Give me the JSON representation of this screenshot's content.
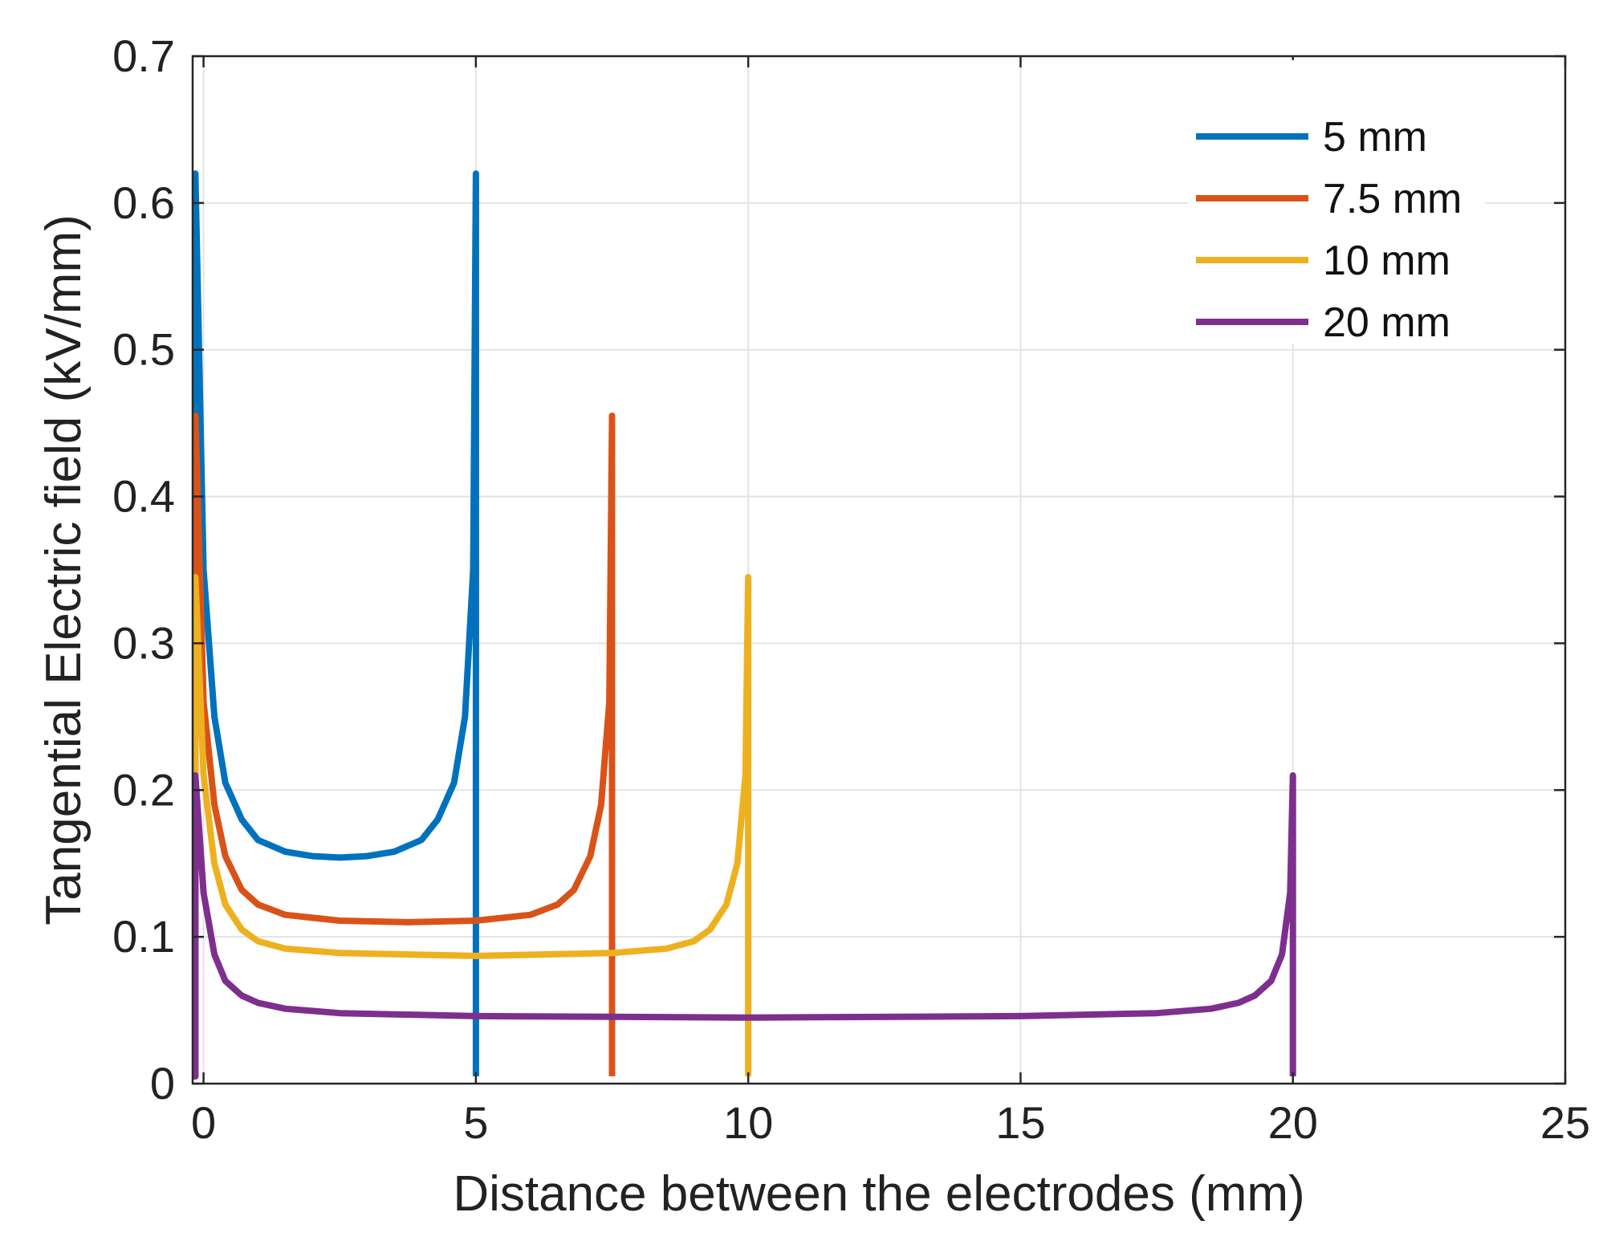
{
  "chart_data": {
    "type": "line",
    "title": "",
    "xlabel": "Distance between the electrodes (mm)",
    "ylabel": "Tangential Electric field (kV/mm)",
    "xlim": [
      -0.2,
      25
    ],
    "ylim": [
      0,
      0.7
    ],
    "xticks": [
      0,
      5,
      10,
      15,
      20,
      25
    ],
    "yticks": [
      0,
      0.1,
      0.2,
      0.3,
      0.4,
      0.5,
      0.6,
      0.7
    ],
    "xtick_labels": [
      "0",
      "5",
      "10",
      "15",
      "20",
      "25"
    ],
    "ytick_labels": [
      "0",
      "0.1",
      "0.2",
      "0.3",
      "0.4",
      "0.5",
      "0.6",
      "0.7"
    ],
    "grid": true,
    "legend_position": "top-right",
    "series": [
      {
        "name": "5 mm",
        "color": "#0072BD",
        "x": [
          -0.2,
          -0.15,
          -0.15,
          0.0,
          0.2,
          0.4,
          0.7,
          1.0,
          1.5,
          2.0,
          2.5,
          3.0,
          3.5,
          4.0,
          4.3,
          4.6,
          4.8,
          4.95,
          5.0,
          5.0
        ],
        "values": [
          0.005,
          0.005,
          0.62,
          0.35,
          0.25,
          0.205,
          0.18,
          0.166,
          0.158,
          0.155,
          0.154,
          0.155,
          0.158,
          0.166,
          0.18,
          0.205,
          0.25,
          0.35,
          0.62,
          0.005
        ]
      },
      {
        "name": "7.5 mm",
        "color": "#D95319",
        "x": [
          -0.2,
          -0.15,
          -0.15,
          0.0,
          0.2,
          0.4,
          0.7,
          1.0,
          1.5,
          2.5,
          3.75,
          5.0,
          6.0,
          6.5,
          6.8,
          7.1,
          7.3,
          7.45,
          7.5,
          7.5
        ],
        "values": [
          0.005,
          0.005,
          0.455,
          0.26,
          0.19,
          0.155,
          0.132,
          0.122,
          0.115,
          0.111,
          0.11,
          0.111,
          0.115,
          0.122,
          0.132,
          0.155,
          0.19,
          0.26,
          0.455,
          0.005
        ]
      },
      {
        "name": "10 mm",
        "color": "#EDB120",
        "x": [
          -0.2,
          -0.15,
          -0.15,
          0.0,
          0.2,
          0.4,
          0.7,
          1.0,
          1.5,
          2.5,
          5.0,
          7.5,
          8.5,
          9.0,
          9.3,
          9.6,
          9.8,
          9.95,
          10.0,
          10.0
        ],
        "values": [
          0.005,
          0.005,
          0.345,
          0.21,
          0.15,
          0.122,
          0.105,
          0.097,
          0.092,
          0.089,
          0.087,
          0.089,
          0.092,
          0.097,
          0.105,
          0.122,
          0.15,
          0.21,
          0.345,
          0.005
        ]
      },
      {
        "name": "20 mm",
        "color": "#7E2F8E",
        "x": [
          -0.2,
          -0.15,
          -0.15,
          0.0,
          0.2,
          0.4,
          0.7,
          1.0,
          1.5,
          2.5,
          5.0,
          10.0,
          15.0,
          17.5,
          18.5,
          19.0,
          19.3,
          19.6,
          19.8,
          19.95,
          20.0,
          20.0
        ],
        "values": [
          0.005,
          0.005,
          0.21,
          0.13,
          0.088,
          0.07,
          0.06,
          0.055,
          0.051,
          0.048,
          0.046,
          0.045,
          0.046,
          0.048,
          0.051,
          0.055,
          0.06,
          0.07,
          0.088,
          0.13,
          0.21,
          0.005
        ]
      }
    ]
  }
}
